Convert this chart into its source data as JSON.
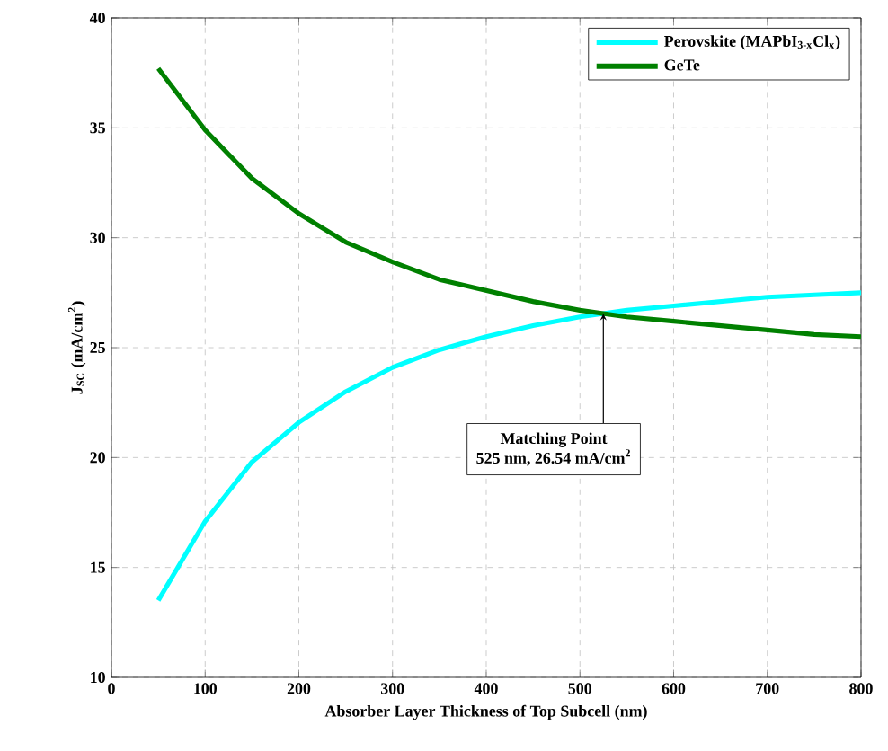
{
  "chart_data": {
    "type": "line",
    "xlabel": "Absorber Layer Thickness of Top Subcell (nm)",
    "ylabel": "J$_{SC}$ (mA/cm$^{2}$)",
    "x": [
      50,
      100,
      150,
      200,
      250,
      300,
      350,
      400,
      450,
      500,
      550,
      600,
      650,
      700,
      750,
      800
    ],
    "series": [
      {
        "name": "Perovskite (MAPbI$_{3-x}$Cl$_{x}$)",
        "color": "#00ffff",
        "values": [
          13.5,
          17.1,
          19.8,
          21.6,
          23.0,
          24.1,
          24.9,
          25.5,
          26.0,
          26.4,
          26.7,
          26.9,
          27.1,
          27.3,
          27.4,
          27.5
        ]
      },
      {
        "name": "GeTe",
        "color": "#008000",
        "values": [
          37.7,
          34.9,
          32.7,
          31.1,
          29.8,
          28.9,
          28.1,
          27.6,
          27.1,
          26.7,
          26.4,
          26.2,
          26.0,
          25.8,
          25.6,
          25.5
        ]
      }
    ],
    "xlim": [
      0,
      800
    ],
    "ylim": [
      10,
      40
    ],
    "xticks": [
      0,
      100,
      200,
      300,
      400,
      500,
      600,
      700,
      800
    ],
    "yticks": [
      10,
      15,
      20,
      25,
      30,
      35,
      40
    ],
    "grid": true,
    "legend": "top right",
    "line_style": "solid",
    "marker": "none",
    "annotations": [
      {
        "text": "Matching Point",
        "x": 525,
        "y": 26.54
      },
      "525 nm, 26.54 mA/cm$^{2}$"
    ]
  }
}
